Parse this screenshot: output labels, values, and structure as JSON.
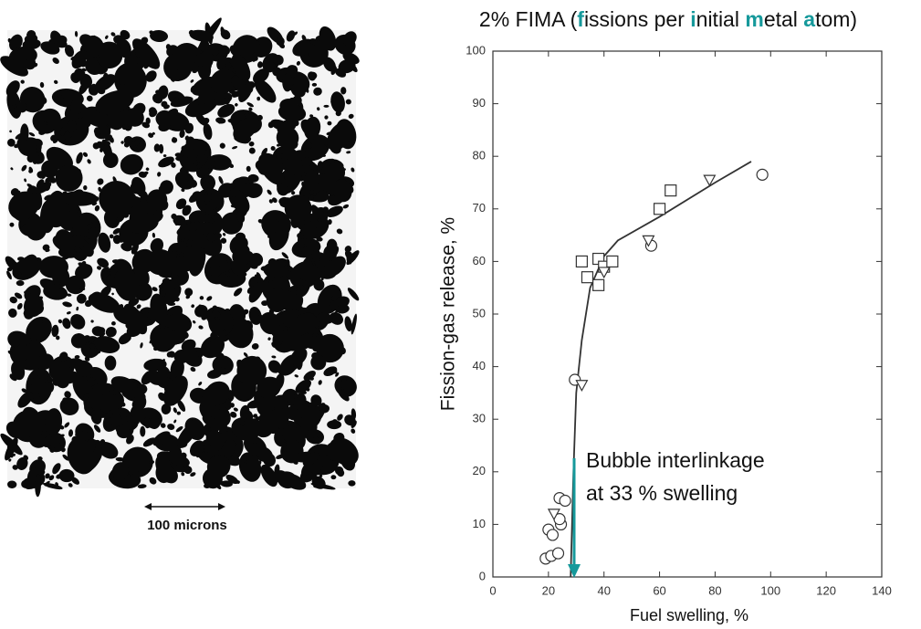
{
  "micrograph": {
    "caption": "100 microns"
  },
  "chart_data": {
    "type": "scatter",
    "title_parts": [
      "2% FIMA (",
      "f",
      "issions per ",
      "i",
      "nitial ",
      "m",
      "etal ",
      "a",
      "tom)"
    ],
    "title_color": "#111111",
    "title_highlight_color": "#16999b",
    "x_label": "Fuel swelling, %",
    "y_label": "Fission-gas release, %",
    "annotation": [
      "Bubble interlinkage",
      "at 33 % swelling"
    ],
    "annotation_color": "#16999b",
    "xlim": [
      0,
      140
    ],
    "ylim": [
      0,
      100
    ],
    "xticks": [
      0,
      20,
      40,
      60,
      80,
      100,
      120,
      140
    ],
    "yticks": [
      0,
      10,
      20,
      30,
      40,
      50,
      60,
      70,
      80,
      90,
      100
    ],
    "series": [
      {
        "marker": "circle",
        "color": "#333333",
        "x": [
          19,
          21,
          23.5,
          20,
          21.5,
          24.5,
          24,
          24,
          26,
          29.5,
          57,
          97
        ],
        "values": [
          3.5,
          4,
          4.5,
          9,
          8,
          10,
          11,
          15,
          14.5,
          37.5,
          63,
          76.5
        ]
      },
      {
        "marker": "square",
        "color": "#333333",
        "x": [
          32,
          34,
          38,
          38,
          40,
          43,
          60,
          64
        ],
        "values": [
          60,
          57,
          55.5,
          60.5,
          59,
          60,
          70,
          73.5
        ]
      },
      {
        "marker": "triangle-down",
        "color": "#333333",
        "x": [
          32,
          22,
          40,
          56,
          78
        ],
        "values": [
          36.5,
          12,
          58,
          64,
          75.5
        ]
      }
    ],
    "fit_line": {
      "color": "#333333",
      "x": [
        28,
        29,
        30,
        32,
        35,
        40,
        45,
        60,
        80,
        93
      ],
      "values": [
        0,
        20,
        35,
        45,
        55,
        61,
        64,
        68.5,
        75,
        79
      ]
    }
  }
}
